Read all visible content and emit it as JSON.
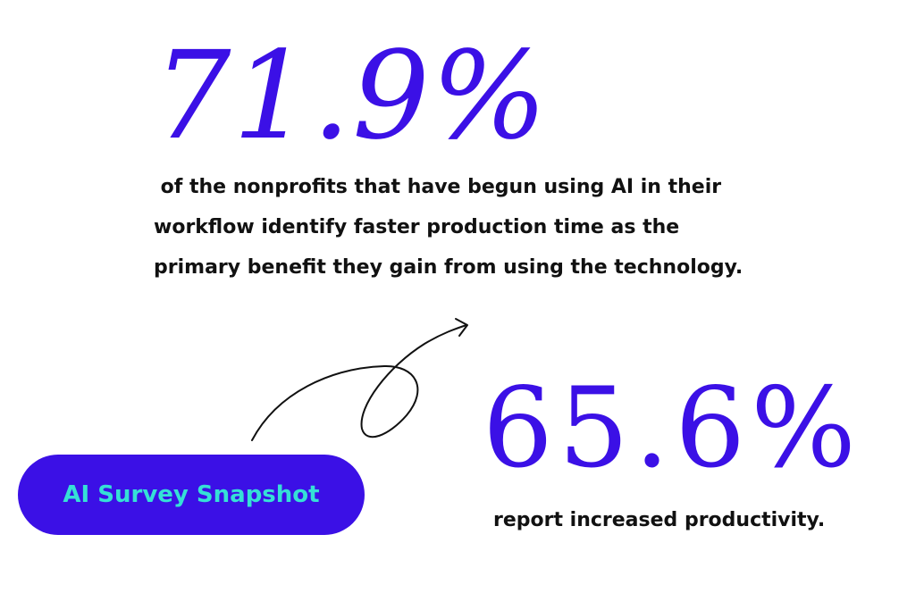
{
  "stats": [
    {
      "value": "71.9%",
      "description_lines": [
        " of the nonprofits that have begun using AI in their",
        "workflow identify faster production time as the",
        "primary benefit they gain from using the technology."
      ]
    },
    {
      "value": "65.6%",
      "description_lines": [
        "report increased productivity."
      ]
    }
  ],
  "badge": {
    "label": "AI Survey Snapshot"
  },
  "decoration": {
    "icon": "curved-arrow-icon"
  },
  "colors": {
    "accent": "#3b10e6",
    "badge_text": "#35e0d6",
    "body_text": "#111111",
    "background": "#ffffff"
  }
}
